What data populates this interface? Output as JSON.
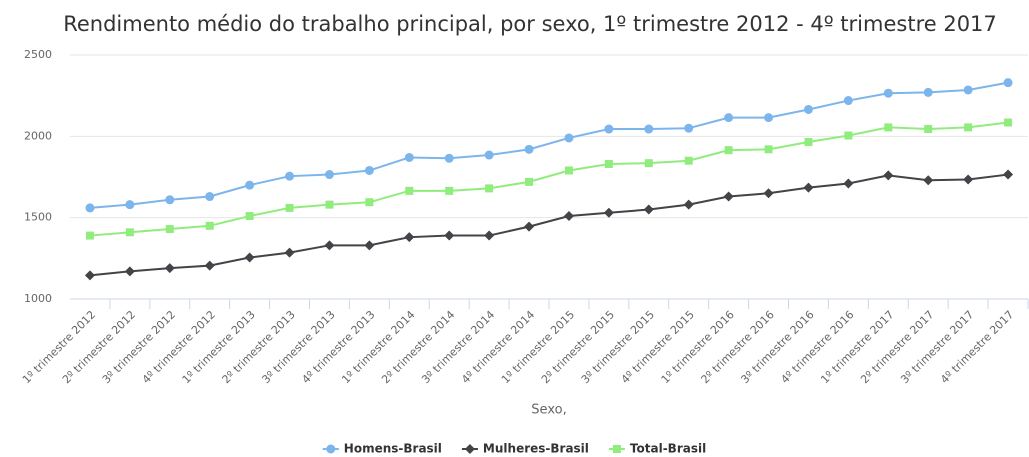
{
  "chart_data": {
    "type": "line",
    "title": "Rendimento médio do trabalho principal, por sexo, 1º trimestre 2012 - 4º trimestre 2017",
    "xlabel": "Sexo,",
    "categories": [
      "1º trimestre 2012",
      "2º trimestre 2012",
      "3º trimestre 2012",
      "4º trimestre 2012",
      "1º trimestre 2013",
      "2º trimestre 2013",
      "3º trimestre 2013",
      "4º trimestre 2013",
      "1º trimestre 2014",
      "2º trimestre 2014",
      "3º trimestre 2014",
      "4º trimestre 2014",
      "1º trimestre 2015",
      "2º trimestre 2015",
      "3º trimestre 2015",
      "4º trimestre 2015",
      "1º trimestre 2016",
      "2º trimestre 2016",
      "3º trimestre 2016",
      "4º trimestre 2016",
      "1º trimestre 2017",
      "2º trimestre 2017",
      "3º trimestre 2017",
      "4º trimestre 2017"
    ],
    "series": [
      {
        "name": "Homens-Brasil",
        "color": "#7cb5ec",
        "marker": "circle",
        "values": [
          1560,
          1580,
          1610,
          1630,
          1700,
          1755,
          1765,
          1790,
          1870,
          1865,
          1885,
          1920,
          1990,
          2045,
          2045,
          2050,
          2115,
          2115,
          2165,
          2220,
          2265,
          2270,
          2285,
          2330
        ]
      },
      {
        "name": "Mulheres-Brasil",
        "color": "#434348",
        "marker": "diamond",
        "values": [
          1145,
          1170,
          1190,
          1205,
          1255,
          1285,
          1330,
          1330,
          1380,
          1390,
          1390,
          1445,
          1510,
          1530,
          1550,
          1580,
          1630,
          1650,
          1685,
          1710,
          1760,
          1730,
          1735,
          1765
        ]
      },
      {
        "name": "Total-Brasil",
        "color": "#90ed7d",
        "marker": "square",
        "values": [
          1390,
          1410,
          1430,
          1450,
          1510,
          1560,
          1580,
          1595,
          1665,
          1665,
          1680,
          1720,
          1790,
          1830,
          1835,
          1850,
          1915,
          1920,
          1965,
          2005,
          2055,
          2045,
          2055,
          2085
        ]
      }
    ],
    "ylim": [
      1000,
      2500
    ],
    "yticks": [
      1000,
      1500,
      2000,
      2500
    ],
    "grid": true,
    "legend": "bottom"
  }
}
